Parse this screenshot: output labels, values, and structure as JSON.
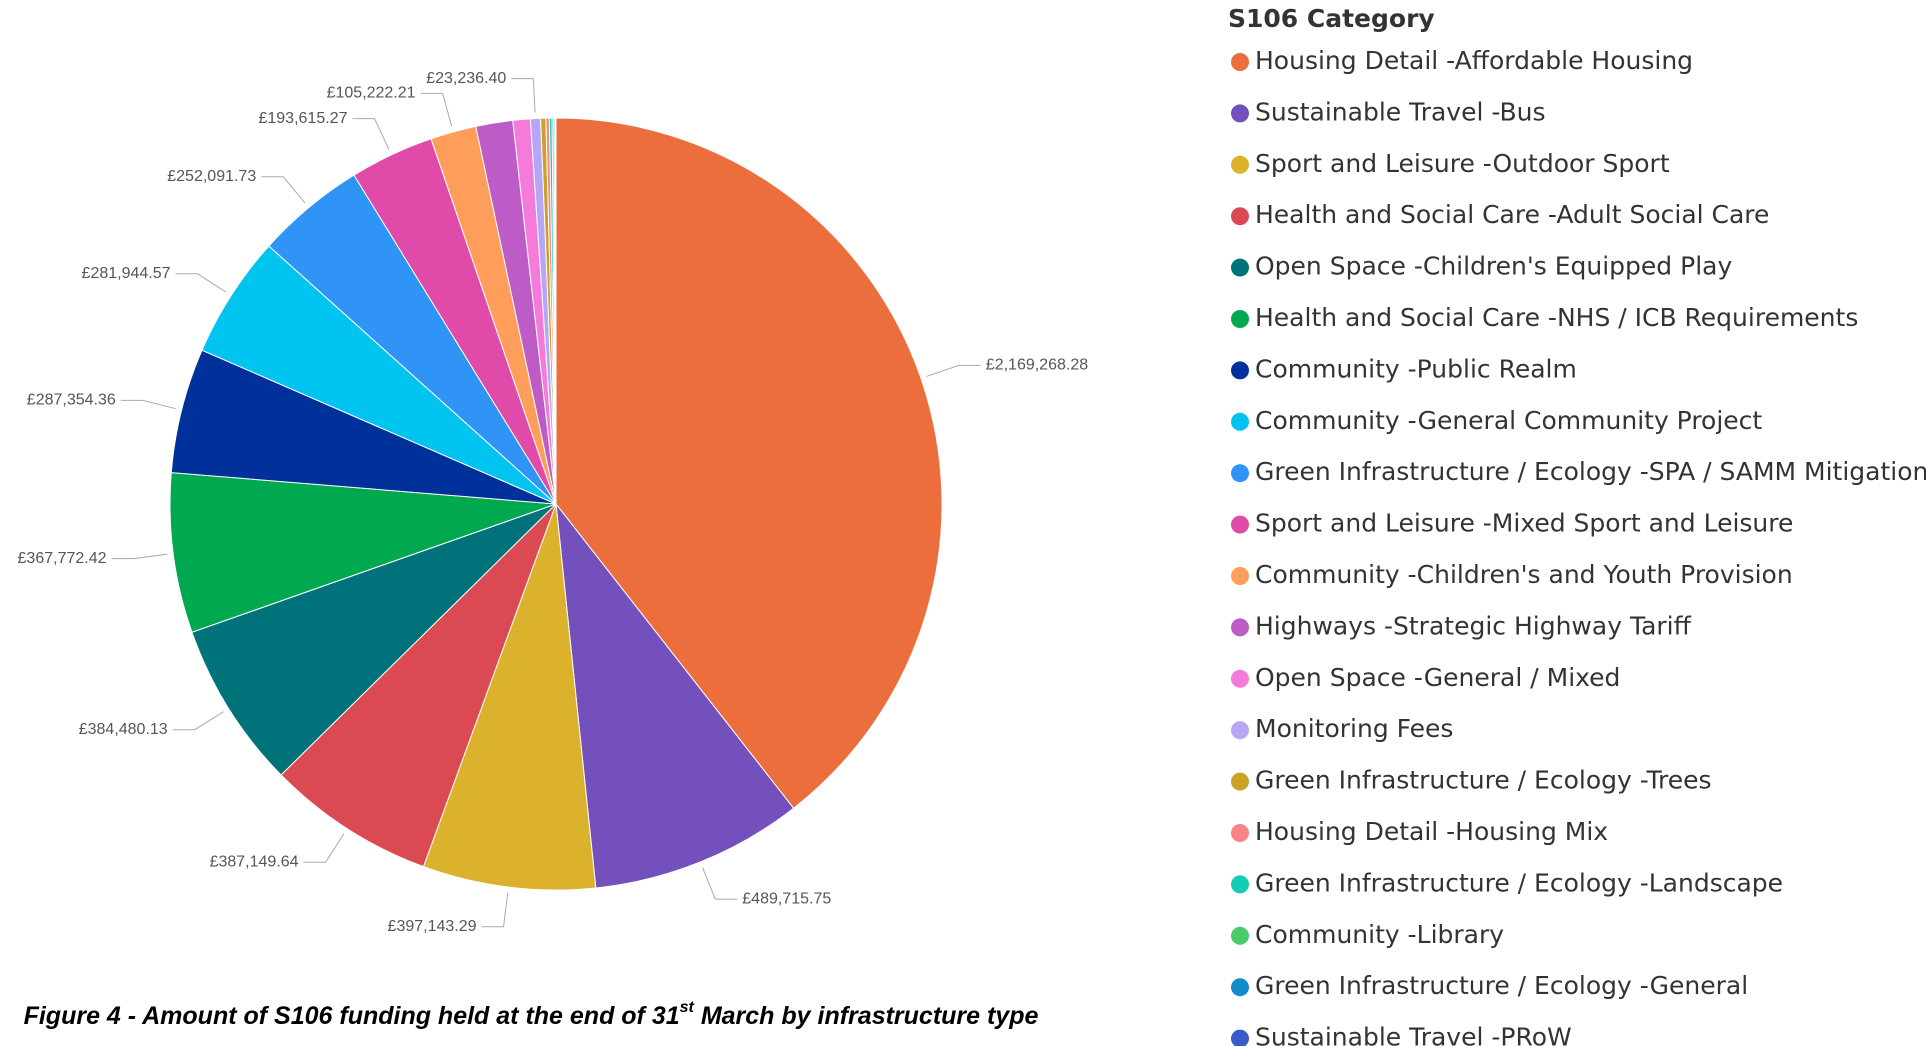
{
  "chart_data": {
    "type": "pie",
    "legend_title": "S106 Category",
    "caption": "Figure 4 - Amount of S106 funding held at the end of 31",
    "caption_sup": "st",
    "caption_end": " March by infrastructure type",
    "categories": [
      "Housing Detail -Affordable Housing",
      "Sustainable Travel -Bus",
      "Sport and Leisure -Outdoor Sport",
      "Health and Social Care -Adult Social Care",
      "Open Space -Children's Equipped Play",
      "Health and Social Care -NHS / ICB Requirements",
      "Community -Public Realm",
      "Community -General Community Project",
      "Green Infrastructure / Ecology -SPA / SAMM Mitigation",
      "Sport and Leisure -Mixed Sport and Leisure",
      "Community -Children's and Youth Provision",
      "Highways -Strategic Highway Tariff",
      "Open Space -General / Mixed",
      "Monitoring Fees",
      "Green Infrastructure / Ecology -Trees",
      "Housing Detail -Housing Mix",
      "Green Infrastructure / Ecology -Landscape",
      "Community -Library",
      "Green Infrastructure / Ecology -General",
      "Sustainable Travel -PRoW"
    ],
    "values": [
      2169268.28,
      489715.75,
      397143.29,
      387149.64,
      384480.13,
      367772.42,
      287354.36,
      281944.57,
      252091.73,
      193615.27,
      105222.21,
      85000,
      40000,
      23236.4,
      12000,
      8000,
      6000,
      4000,
      3000,
      2000
    ],
    "value_labels": [
      "£2,169,268.28",
      "£489,715.75",
      "£397,143.29",
      "£387,149.64",
      "£384,480.13",
      "£367,772.42",
      "£287,354.36",
      "£281,944.57",
      "£252,091.73",
      "£193,615.27",
      "£105,222.21",
      null,
      null,
      "£23,236.40",
      null,
      null,
      null,
      null,
      null,
      null
    ],
    "colors": [
      "#EB6E3C",
      "#7450BD",
      "#DCB12C",
      "#DB4A52",
      "#00727A",
      "#00A84F",
      "#00309A",
      "#00C4F0",
      "#2F94F5",
      "#E04AA8",
      "#FF9E5A",
      "#BD5CC6",
      "#F57BDB",
      "#B7A6F5",
      "#C9A227",
      "#F98585",
      "#14CDB7",
      "#4CC96A",
      "#118DC9",
      "#3A5BC7"
    ]
  }
}
